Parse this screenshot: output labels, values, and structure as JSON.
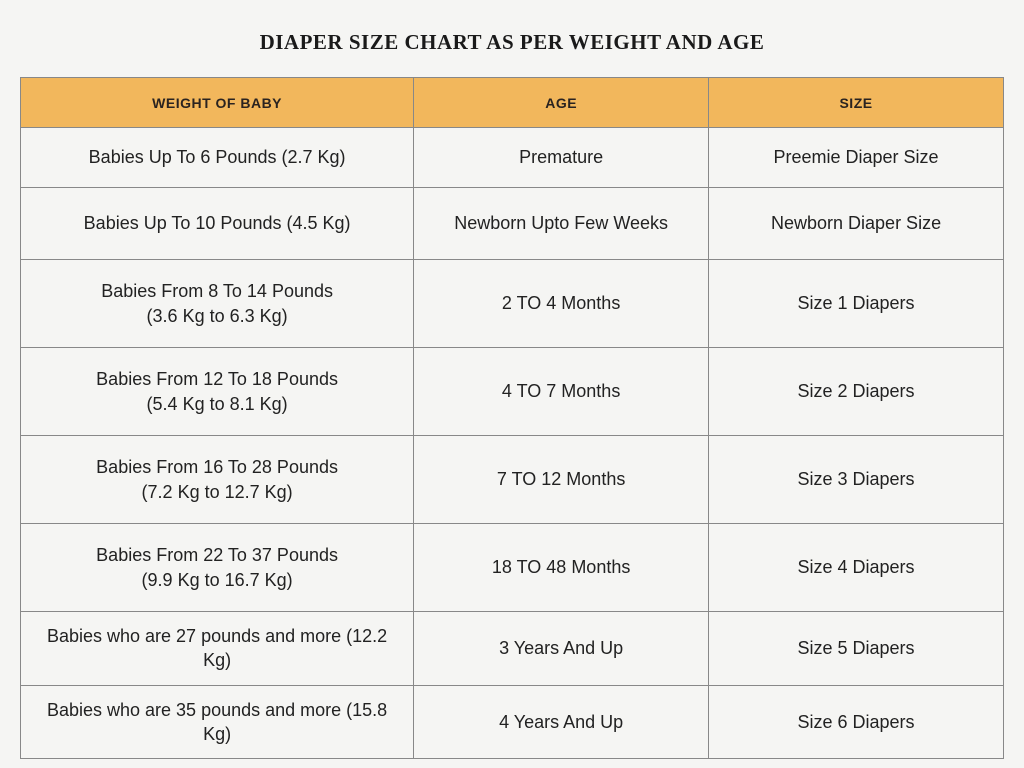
{
  "title": "DIAPER SIZE CHART AS PER WEIGHT AND AGE",
  "columns": {
    "weight": "WEIGHT OF BABY",
    "age": "AGE",
    "size": "SIZE"
  },
  "rows": [
    {
      "weight_l1": "Babies Up To 6 Pounds (2.7 Kg)",
      "weight_l2": "",
      "age": "Premature",
      "size": "Preemie Diaper Size",
      "row_height": "h60"
    },
    {
      "weight_l1": "Babies Up To 10 Pounds (4.5 Kg)",
      "weight_l2": "",
      "age": "Newborn Upto Few Weeks",
      "size": "Newborn Diaper Size",
      "row_height": "h72"
    },
    {
      "weight_l1": "Babies From 8 To 14 Pounds",
      "weight_l2": "(3.6 Kg to 6.3 Kg)",
      "age": "2 TO 4 Months",
      "size": "Size 1 Diapers",
      "row_height": "h88"
    },
    {
      "weight_l1": "Babies From 12 To 18 Pounds",
      "weight_l2": "(5.4 Kg to 8.1 Kg)",
      "age": "4 TO 7 Months",
      "size": "Size 2  Diapers",
      "row_height": "h88"
    },
    {
      "weight_l1": "Babies From 16 To 28 Pounds",
      "weight_l2": "(7.2 Kg to 12.7 Kg)",
      "age": "7 TO 12 Months",
      "size": "Size 3 Diapers",
      "row_height": "h88"
    },
    {
      "weight_l1": "Babies From 22 To 37 Pounds",
      "weight_l2": "(9.9 Kg to 16.7 Kg)",
      "age": "18 TO 48 Months",
      "size": "Size 4 Diapers",
      "row_height": "h88"
    },
    {
      "weight_l1": "Babies who are 27 pounds and more (12.2 Kg)",
      "weight_l2": "",
      "age": "3 Years And Up",
      "size": "Size 5 Diapers",
      "row_height": "h70"
    },
    {
      "weight_l1": "Babies who are 35 pounds and more  (15.8 Kg)",
      "weight_l2": "",
      "age": "4 Years And Up",
      "size": "Size 6 Diapers",
      "row_height": "h70"
    }
  ],
  "style": {
    "header_bg": "#f2b75c",
    "border_color": "#888888",
    "page_bg": "#f5f5f3",
    "title_font": "Georgia serif bold 21px",
    "body_font": "Helvetica/Arial 18px",
    "header_font": "Helvetica/Arial bold 14px",
    "column_widths_pct": [
      40,
      30,
      30
    ]
  }
}
